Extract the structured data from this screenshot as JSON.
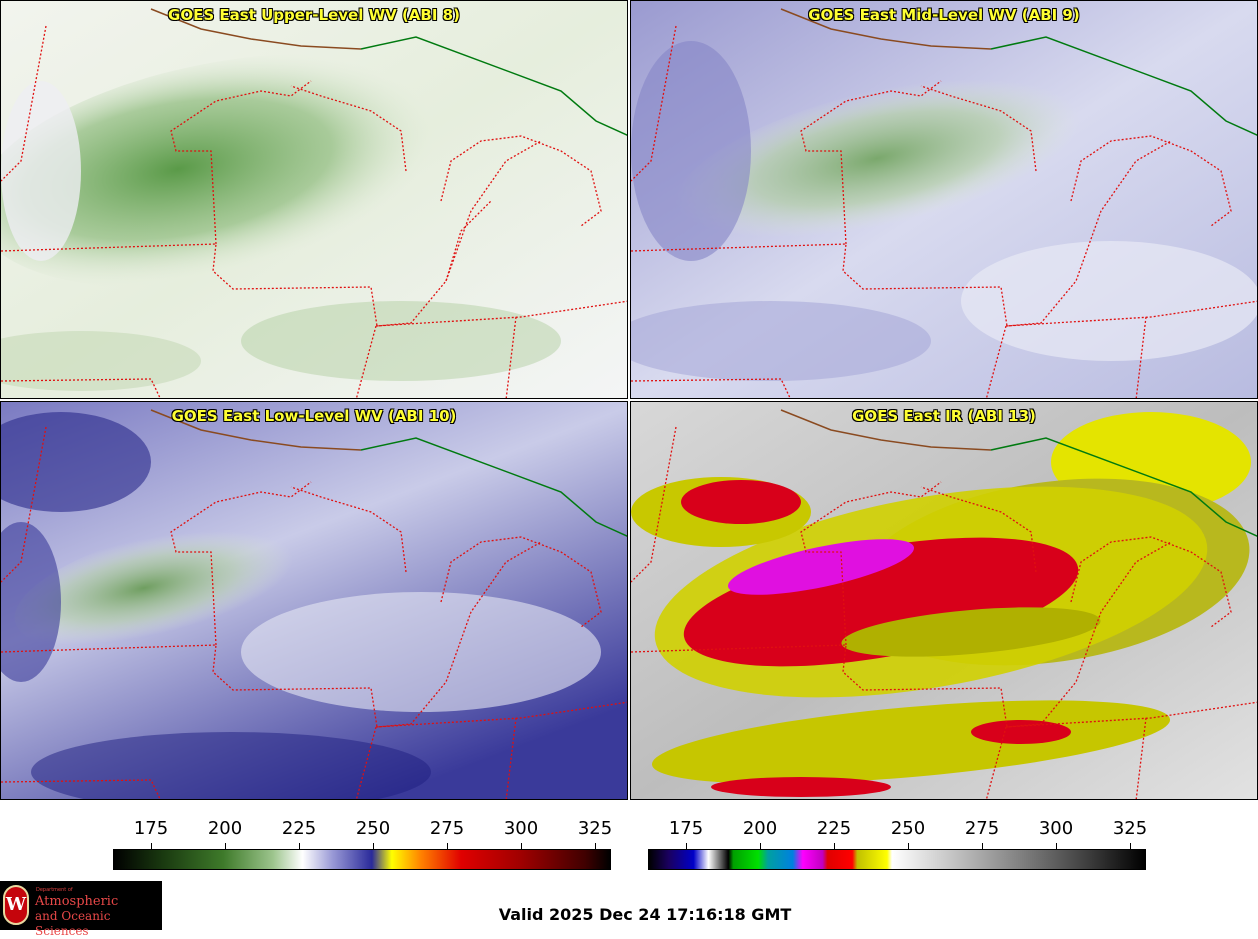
{
  "panels": [
    {
      "title": "GOES East Upper-Level WV (ABI 8)",
      "palette": "green-white"
    },
    {
      "title": "GOES East Mid-Level WV (ABI 9)",
      "palette": "green-blue"
    },
    {
      "title": "GOES East Low-Level WV (ABI 10)",
      "palette": "blue-white"
    },
    {
      "title": "GOES East IR (ABI 13)",
      "palette": "ir-enhanced"
    }
  ],
  "colorbars": {
    "wv_ticks": [
      "175",
      "200",
      "225",
      "250",
      "275",
      "300",
      "325"
    ],
    "ir_ticks": [
      "175",
      "200",
      "225",
      "250",
      "275",
      "300",
      "325"
    ]
  },
  "logo": {
    "line1": "Department of",
    "line2a": "Atmospheric",
    "line2b": "and Oceanic Sciences",
    "seal_letter": "W"
  },
  "valid_time": "Valid 2025 Dec 24 17:16:18 GMT",
  "colors": {
    "borders": "#e01010",
    "canada": "#007a10",
    "title": "#ffff33"
  }
}
